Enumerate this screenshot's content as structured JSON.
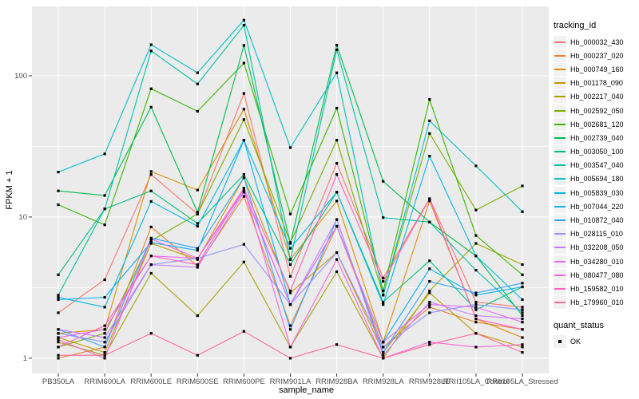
{
  "axes": {
    "x_title": "sample_name",
    "y_title": "FPKM + 1",
    "y_tick_labels": [
      "1",
      "10",
      "100"
    ]
  },
  "legend": {
    "tracking_title": "tracking_id",
    "quant_title": "quant_status",
    "quant_items": [
      {
        "label": "OK",
        "marker": "black-square"
      }
    ]
  },
  "colors": {
    "panel_bg": "#EBEBEB",
    "grid": "#FFFFFF",
    "tick_mark": "#333333",
    "tick_text": "#4D4D4D",
    "axis_title": "#000000",
    "point": "#000000",
    "legend_key_bg": "#F2F2F2"
  },
  "chart_data": {
    "type": "line",
    "yscale": "log10",
    "ylim": [
      0.78,
      310
    ],
    "y_major_ticks": [
      1,
      10,
      100
    ],
    "y_minor_gridlines": [
      3.162,
      31.62,
      316.2
    ],
    "grid": true,
    "legend_position": "right",
    "marker": "square",
    "x_categories": [
      "PB350LA",
      "RRIM600LA",
      "RRIM600LE",
      "RRIM600SE",
      "RRIM600PE",
      "RRIM901LA",
      "RRIM928BA",
      "RRIM928LA",
      "RRIM928LE",
      "RRII105LA_Control",
      "RRII105LA_Stressed"
    ],
    "series": [
      {
        "name": "Hb_000032_430",
        "color": "#F8766D",
        "values": [
          2.1,
          3.6,
          20,
          10.5,
          75,
          3.8,
          24,
          3.7,
          13.5,
          2.5,
          2.3
        ]
      },
      {
        "name": "Hb_000237_020",
        "color": "#EA8331",
        "values": [
          1.0,
          1.2,
          8.5,
          4.5,
          14,
          1.7,
          8.6,
          1.2,
          2.3,
          1.8,
          1.6
        ]
      },
      {
        "name": "Hb_000749_160",
        "color": "#D89000",
        "values": [
          1.5,
          1.6,
          21,
          15.5,
          58,
          5.0,
          13,
          1.3,
          13,
          1.9,
          1.4
        ]
      },
      {
        "name": "Hb_001178_090",
        "color": "#C09B00",
        "values": [
          1.4,
          1.1,
          6.5,
          5.0,
          19,
          2.9,
          5.6,
          1.1,
          2.9,
          1.5,
          1.2
        ]
      },
      {
        "name": "Hb_002217_040",
        "color": "#A3A500",
        "values": [
          1.3,
          1.05,
          4.0,
          2.0,
          4.8,
          1.2,
          4.1,
          1.0,
          3.0,
          6.5,
          4.6
        ]
      },
      {
        "name": "Hb_002592_050",
        "color": "#7CAE00",
        "values": [
          1.2,
          1.5,
          6.8,
          10.5,
          49,
          6.6,
          35,
          2.8,
          39,
          11.2,
          16.6
        ]
      },
      {
        "name": "Hb_002681_120",
        "color": "#39B600",
        "values": [
          12.2,
          8.8,
          81,
          56,
          123,
          10.5,
          59,
          3.0,
          68,
          7.4,
          3.9
        ]
      },
      {
        "name": "Hb_002739_040",
        "color": "#00BB4E",
        "values": [
          15.3,
          14.2,
          60,
          10.8,
          164,
          6.5,
          165,
          17.9,
          9.2,
          5.3,
          2.0
        ]
      },
      {
        "name": "Hb_003050_100",
        "color": "#00BF7D",
        "values": [
          3.9,
          11.4,
          15.3,
          9.0,
          20,
          4.6,
          15,
          2.5,
          4.9,
          2.2,
          3.2
        ]
      },
      {
        "name": "Hb_003547_040",
        "color": "#00C1A3",
        "values": [
          2.8,
          11.4,
          150,
          87.5,
          228,
          5.0,
          153,
          9.9,
          9.2,
          4.2,
          2.1
        ]
      },
      {
        "name": "Hb_005694_180",
        "color": "#00BFC4",
        "values": [
          20.8,
          28,
          166,
          105,
          248,
          31,
          105,
          2.8,
          48,
          23,
          10.9
        ]
      },
      {
        "name": "Hb_005839_030",
        "color": "#00BAE0",
        "values": [
          2.7,
          2.3,
          12.9,
          8.6,
          35,
          6.0,
          15,
          2.4,
          27,
          5.3,
          2.6
        ]
      },
      {
        "name": "Hb_007044_220",
        "color": "#00B0F6",
        "values": [
          2.6,
          2.7,
          6.6,
          5.8,
          35,
          2.4,
          8.6,
          1.3,
          4.3,
          2.8,
          3.2
        ]
      },
      {
        "name": "Hb_010872_040",
        "color": "#35A2FF",
        "values": [
          1.6,
          1.2,
          7.1,
          6.0,
          19,
          1.6,
          9.6,
          1.1,
          3.5,
          2.9,
          3.4
        ]
      },
      {
        "name": "Hb_028115_010",
        "color": "#9590FF",
        "values": [
          1.5,
          1.3,
          4.6,
          5.1,
          6.4,
          2.4,
          5.6,
          1.2,
          2.1,
          2.4,
          2.2
        ]
      },
      {
        "name": "Hb_032208_050",
        "color": "#C77CFF",
        "values": [
          1.6,
          1.4,
          4.6,
          4.4,
          15,
          2.4,
          9.6,
          1.05,
          2.5,
          2.0,
          1.9
        ]
      },
      {
        "name": "Hb_034280_010",
        "color": "#E76BF3",
        "values": [
          1.4,
          1.6,
          5.3,
          5.1,
          15.3,
          2.4,
          8.6,
          1.3,
          2.4,
          2.3,
          1.8
        ]
      },
      {
        "name": "Hb_080477_080",
        "color": "#FA62DB",
        "values": [
          1.35,
          1.0,
          7.0,
          5.1,
          16,
          1.2,
          5.0,
          1.0,
          1.3,
          1.2,
          1.25
        ]
      },
      {
        "name": "Hb_159582_010",
        "color": "#FF62BC",
        "values": [
          1.2,
          1.7,
          5.3,
          4.6,
          16,
          3.0,
          20,
          3.5,
          13.4,
          1.9,
          1.6
        ]
      },
      {
        "name": "Hb_179960_010",
        "color": "#FF6A98",
        "values": [
          1.05,
          1.05,
          1.5,
          1.05,
          1.55,
          1.0,
          1.25,
          1.0,
          1.25,
          1.5,
          1.1
        ]
      }
    ]
  }
}
